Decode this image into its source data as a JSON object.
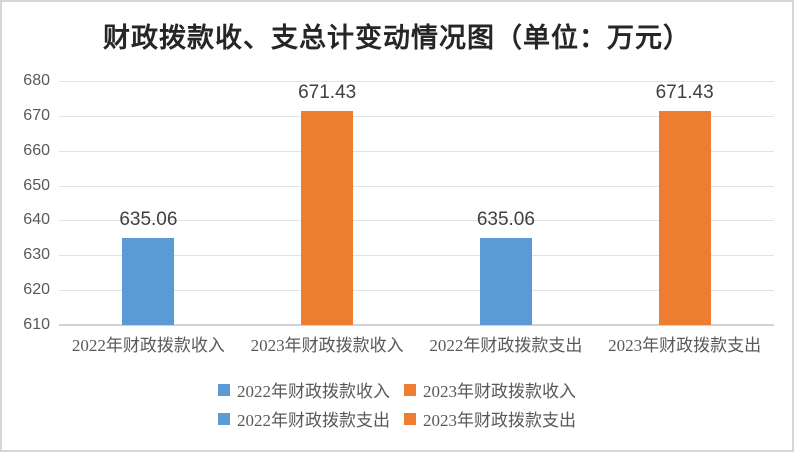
{
  "title": "财政拨款收、支总计变动情况图（单位：万元）",
  "chart_data": {
    "type": "bar",
    "title": "财政拨款收、支总计变动情况图（单位：万元）",
    "unit": "万元",
    "categories": [
      "2022年财政拨款收入",
      "2023年财政拨款收入",
      "2022年财政拨款支出",
      "2023年财政拨款支出"
    ],
    "values": [
      635.06,
      671.43,
      635.06,
      671.43
    ],
    "data_labels": [
      "635.06",
      "671.43",
      "635.06",
      "671.43"
    ],
    "bar_colors": [
      "#5B9BD5",
      "#ED7D31",
      "#5B9BD5",
      "#ED7D31"
    ],
    "ylim": [
      610,
      680
    ],
    "yticks": [
      680,
      670,
      660,
      650,
      640,
      630,
      620,
      610
    ],
    "ytick_interval": 10,
    "grid": true,
    "legend_position": "bottom",
    "legend": [
      {
        "label": "2022年财政拨款收入",
        "color": "#5B9BD5"
      },
      {
        "label": "2023年财政拨款收入",
        "color": "#ED7D31"
      },
      {
        "label": "2022年财政拨款支出",
        "color": "#5B9BD5"
      },
      {
        "label": "2023年财政拨款支出",
        "color": "#ED7D31"
      }
    ],
    "colors": {
      "blue": "#5B9BD5",
      "orange": "#ED7D31",
      "gridline": "#E2E2E2",
      "axis_line": "#CFD2D6",
      "axis_text": "#595959",
      "data_label_text": "#404040",
      "title_text": "#262626",
      "border": "#D6D6D6",
      "background": "#FFFFFF"
    }
  }
}
